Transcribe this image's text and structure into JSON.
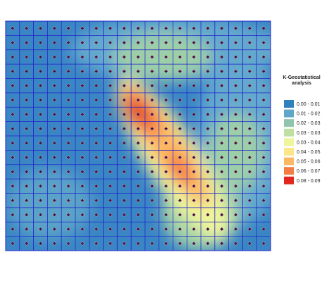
{
  "legend": {
    "title": [
      "K-Geostatistical",
      "analysis"
    ],
    "items": [
      {
        "label": "0.00 - 0.01",
        "color": "#2f80bd"
      },
      {
        "label": "0.01 - 0.02",
        "color": "#5ea7c9"
      },
      {
        "label": "0.02 - 0.03",
        "color": "#8fc4ae"
      },
      {
        "label": "0.03 - 0.03",
        "color": "#bfe0a2"
      },
      {
        "label": "0.03 - 0.04",
        "color": "#eef59a"
      },
      {
        "label": "0.04 - 0.05",
        "color": "#fde58a"
      },
      {
        "label": "0.05 - 0.06",
        "color": "#fdb863"
      },
      {
        "label": "0.06 - 0.07",
        "color": "#f47d45"
      },
      {
        "label": "0.08 - 0.09",
        "color": "#e0261f"
      }
    ]
  }
}
